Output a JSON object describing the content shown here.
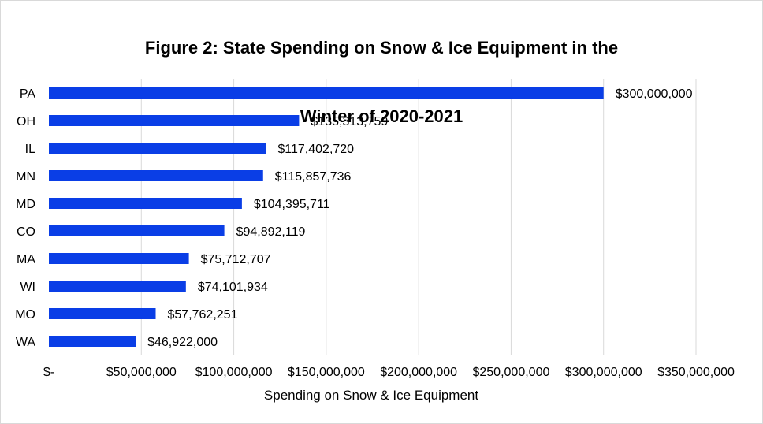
{
  "chart_data": {
    "type": "bar",
    "orientation": "horizontal",
    "title": "Figure 2: State Spending on Snow & Ice Equipment in the Winter of 2020-2021",
    "title_lines": [
      "Figure 2: State Spending on Snow & Ice Equipment in the",
      "Winter of 2020-2021"
    ],
    "xlabel": "Spending on Snow & Ice Equipment",
    "ylabel": "",
    "categories": [
      "PA",
      "OH",
      "IL",
      "MN",
      "MD",
      "CO",
      "MA",
      "WI",
      "MO",
      "WA"
    ],
    "values": [
      300000000,
      135313759,
      117402720,
      115857736,
      104395711,
      94892119,
      75712707,
      74101934,
      57762251,
      46922000
    ],
    "data_labels": [
      "$300,000,000",
      "$135,313,759",
      "$117,402,720",
      "$115,857,736",
      "$104,395,711",
      "$94,892,119",
      "$75,712,707",
      "$74,101,934",
      "$57,762,251",
      "$46,922,000"
    ],
    "xlim": [
      0,
      350000000
    ],
    "x_ticks": [
      0,
      50000000,
      100000000,
      150000000,
      200000000,
      250000000,
      300000000,
      350000000
    ],
    "x_tick_labels": [
      "$-",
      "$50,000,000",
      "$100,000,000",
      "$150,000,000",
      "$200,000,000",
      "$250,000,000",
      "$300,000,000",
      "$350,000,000"
    ],
    "grid": "vertical",
    "legend": "none",
    "bar_color": "#0a3ee6",
    "grid_color": "#d9d9d9"
  }
}
